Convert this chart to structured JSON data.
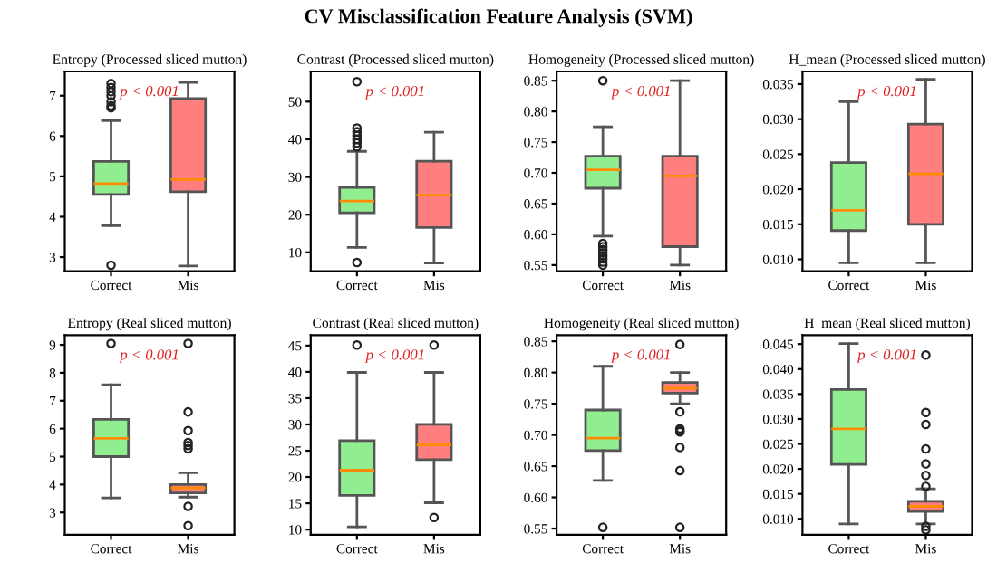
{
  "chart_data": [
    {
      "type": "box",
      "title": "Entropy (Processed sliced mutton)",
      "categories": [
        "Correct",
        "Mis"
      ],
      "colors": [
        "#90ee90",
        "#ff7f7f"
      ],
      "ylim": [
        2.65,
        7.6
      ],
      "yticks": [
        3,
        4,
        5,
        6,
        7
      ],
      "grid": false,
      "annotations": [
        "CV Misclassification Feature Analysis (SVM)",
        "p < 0.001"
      ],
      "boxes": [
        {
          "low": 3.78,
          "q1": 4.55,
          "median": 4.82,
          "q3": 5.37,
          "high": 6.38,
          "outliers": [
            6.7,
            6.75,
            6.85,
            7.0,
            7.1,
            7.2,
            7.3,
            2.8
          ]
        },
        {
          "low": 2.78,
          "q1": 4.62,
          "median": 4.92,
          "q3": 6.93,
          "high": 7.33
        }
      ]
    },
    {
      "type": "box",
      "title": "Contrast (Processed sliced mutton)",
      "categories": [
        "Correct",
        "Mis"
      ],
      "colors": [
        "#90ee90",
        "#ff7f7f"
      ],
      "ylim": [
        5,
        58
      ],
      "yticks": [
        10,
        20,
        30,
        40,
        50
      ],
      "grid": false,
      "annotations": [
        "p < 0.001"
      ],
      "boxes": [
        {
          "low": 11.3,
          "q1": 20.5,
          "median": 23.6,
          "q3": 27.2,
          "high": 36.8,
          "outliers": [
            38,
            39,
            40,
            41,
            42,
            43,
            55.3,
            7.3
          ]
        },
        {
          "low": 7.2,
          "q1": 16.6,
          "median": 25.2,
          "q3": 34.2,
          "high": 41.9
        }
      ]
    },
    {
      "type": "box",
      "title": "Homogeneity (Processed sliced mutton)",
      "categories": [
        "Correct",
        "Mis"
      ],
      "colors": [
        "#90ee90",
        "#ff7f7f"
      ],
      "ylim": [
        0.54,
        0.865
      ],
      "yticks": [
        {
          "value": 0.55,
          "label": "0.55"
        },
        {
          "value": 0.6,
          "label": "0.60"
        },
        {
          "value": 0.65,
          "label": "0.65"
        },
        {
          "value": 0.7,
          "label": "0.70"
        },
        {
          "value": 0.75,
          "label": "0.75"
        },
        {
          "value": 0.8,
          "label": "0.80"
        },
        {
          "value": 0.85,
          "label": "0.85"
        }
      ],
      "grid": false,
      "annotations": [
        "p < 0.001"
      ],
      "boxes": [
        {
          "low": 0.597,
          "q1": 0.675,
          "median": 0.705,
          "q3": 0.727,
          "high": 0.775,
          "outliers": [
            0.85,
            0.585,
            0.58,
            0.575,
            0.57,
            0.565,
            0.56,
            0.555,
            0.55
          ]
        },
        {
          "low": 0.55,
          "q1": 0.58,
          "median": 0.695,
          "q3": 0.727,
          "high": 0.85
        }
      ]
    },
    {
      "type": "box",
      "title": "H_mean (Processed sliced mutton)",
      "categories": [
        "Correct",
        "Mis"
      ],
      "colors": [
        "#90ee90",
        "#ff7f7f"
      ],
      "ylim": [
        0.0083,
        0.0368
      ],
      "yticks": [
        {
          "value": 0.01,
          "label": "0.010"
        },
        {
          "value": 0.015,
          "label": "0.015"
        },
        {
          "value": 0.02,
          "label": "0.020"
        },
        {
          "value": 0.025,
          "label": "0.025"
        },
        {
          "value": 0.03,
          "label": "0.030"
        },
        {
          "value": 0.035,
          "label": "0.035"
        }
      ],
      "grid": false,
      "annotations": [
        "p < 0.001"
      ],
      "boxes": [
        {
          "low": 0.0095,
          "q1": 0.0141,
          "median": 0.017,
          "q3": 0.0238,
          "high": 0.0325
        },
        {
          "low": 0.0095,
          "q1": 0.015,
          "median": 0.0222,
          "q3": 0.0293,
          "high": 0.0357
        }
      ]
    },
    {
      "type": "box",
      "title": "Entropy (Real sliced mutton)",
      "categories": [
        "Correct",
        "Mis"
      ],
      "colors": [
        "#90ee90",
        "#ff7f7f"
      ],
      "ylim": [
        2.2,
        9.35
      ],
      "yticks": [
        3,
        4,
        5,
        6,
        7,
        8,
        9
      ],
      "grid": false,
      "annotations": [
        "p < 0.001"
      ],
      "boxes": [
        {
          "low": 3.52,
          "q1": 5.0,
          "median": 5.65,
          "q3": 6.33,
          "high": 7.57,
          "outliers": [
            9.05
          ]
        },
        {
          "low": 3.55,
          "q1": 3.7,
          "median": 3.88,
          "q3": 4.0,
          "high": 4.42,
          "outliers": [
            9.05,
            6.6,
            5.93,
            5.5,
            5.4,
            5.28,
            3.22,
            2.53
          ]
        }
      ]
    },
    {
      "type": "box",
      "title": "Contrast (Real sliced mutton)",
      "categories": [
        "Correct",
        "Mis"
      ],
      "colors": [
        "#90ee90",
        "#ff7f7f"
      ],
      "ylim": [
        9,
        47
      ],
      "yticks": [
        10,
        15,
        20,
        25,
        30,
        35,
        40,
        45
      ],
      "grid": false,
      "annotations": [
        "p < 0.001"
      ],
      "boxes": [
        {
          "low": 10.5,
          "q1": 16.5,
          "median": 21.3,
          "q3": 26.9,
          "high": 39.9,
          "outliers": [
            45.1
          ]
        },
        {
          "low": 15.1,
          "q1": 23.3,
          "median": 26.1,
          "q3": 30.0,
          "high": 39.9,
          "outliers": [
            45.1,
            12.3
          ]
        }
      ]
    },
    {
      "type": "box",
      "title": "Homogeneity (Real sliced mutton)",
      "categories": [
        "Correct",
        "Mis"
      ],
      "colors": [
        "#90ee90",
        "#ff7f7f"
      ],
      "ylim": [
        0.54,
        0.86
      ],
      "yticks": [
        {
          "value": 0.55,
          "label": "0.55"
        },
        {
          "value": 0.6,
          "label": "0.60"
        },
        {
          "value": 0.65,
          "label": "0.65"
        },
        {
          "value": 0.7,
          "label": "0.70"
        },
        {
          "value": 0.75,
          "label": "0.75"
        },
        {
          "value": 0.8,
          "label": "0.80"
        },
        {
          "value": 0.85,
          "label": "0.85"
        }
      ],
      "grid": false,
      "annotations": [
        "p < 0.001"
      ],
      "boxes": [
        {
          "low": 0.627,
          "q1": 0.675,
          "median": 0.695,
          "q3": 0.74,
          "high": 0.81,
          "outliers": [
            0.552
          ]
        },
        {
          "low": 0.75,
          "q1": 0.767,
          "median": 0.775,
          "q3": 0.784,
          "high": 0.8,
          "outliers": [
            0.845,
            0.737,
            0.71,
            0.707,
            0.705,
            0.68,
            0.643,
            0.552
          ]
        }
      ]
    },
    {
      "type": "box",
      "title": "H_mean (Real sliced mutton)",
      "categories": [
        "Correct",
        "Mis"
      ],
      "colors": [
        "#90ee90",
        "#ff7f7f"
      ],
      "ylim": [
        0.0068,
        0.0468
      ],
      "yticks": [
        {
          "value": 0.01,
          "label": "0.010"
        },
        {
          "value": 0.015,
          "label": "0.015"
        },
        {
          "value": 0.02,
          "label": "0.020"
        },
        {
          "value": 0.025,
          "label": "0.025"
        },
        {
          "value": 0.03,
          "label": "0.030"
        },
        {
          "value": 0.035,
          "label": "0.035"
        },
        {
          "value": 0.04,
          "label": "0.040"
        },
        {
          "value": 0.045,
          "label": "0.045"
        }
      ],
      "grid": false,
      "annotations": [
        "p < 0.001"
      ],
      "boxes": [
        {
          "low": 0.009,
          "q1": 0.0209,
          "median": 0.028,
          "q3": 0.0359,
          "high": 0.0451
        },
        {
          "low": 0.009,
          "q1": 0.0115,
          "median": 0.0125,
          "q3": 0.0135,
          "high": 0.016,
          "outliers": [
            0.0428,
            0.0313,
            0.0289,
            0.024,
            0.021,
            0.0187,
            0.0165,
            0.0085,
            0.0078
          ]
        }
      ]
    }
  ]
}
